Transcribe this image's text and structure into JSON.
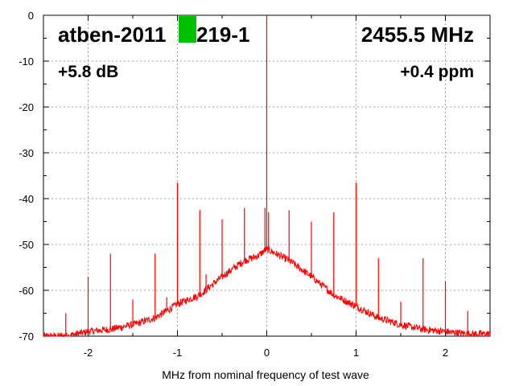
{
  "chart_data": {
    "type": "line",
    "title": "",
    "xlabel": "MHz from nominal frequency of test wave",
    "ylabel": "",
    "xlim": [
      -2.5,
      2.5
    ],
    "ylim": [
      -70,
      0
    ],
    "grid": true,
    "x_ticks": [
      -2,
      -1,
      0,
      1,
      2
    ],
    "x_tick_labels": [
      "-2",
      "-1",
      "0",
      "1",
      "2"
    ],
    "y_ticks": [
      0,
      -10,
      -20,
      -30,
      -40,
      -50,
      -60,
      -70
    ],
    "y_tick_labels": [
      "0",
      "-10",
      "-20",
      "-30",
      "-40",
      "-50",
      "-60",
      "-70"
    ],
    "series_color": "#ff0000",
    "noise_floor": {
      "x": [
        -2.5,
        -2.25,
        -2.0,
        -1.75,
        -1.5,
        -1.25,
        -1.0,
        -0.75,
        -0.5,
        -0.25,
        -0.1,
        0.0,
        0.1,
        0.25,
        0.5,
        0.75,
        1.0,
        1.25,
        1.5,
        1.75,
        2.0,
        2.25,
        2.5
      ],
      "y": [
        -70,
        -70,
        -69,
        -68.5,
        -67.5,
        -66,
        -63,
        -61,
        -57,
        -53.5,
        -52.5,
        -51,
        -52,
        -53.5,
        -57,
        -61,
        -63.5,
        -66,
        -67.5,
        -68.5,
        -69,
        -69.5,
        -69.5
      ]
    },
    "spurs": [
      {
        "x": 0.0,
        "y": 0
      },
      {
        "x": -0.02,
        "y": -42
      },
      {
        "x": 0.02,
        "y": -43
      },
      {
        "x": -1.0,
        "y": -36.5
      },
      {
        "x": 1.0,
        "y": -36.5
      },
      {
        "x": -0.25,
        "y": -42
      },
      {
        "x": 0.25,
        "y": -42.5
      },
      {
        "x": -0.75,
        "y": -42.5
      },
      {
        "x": 0.75,
        "y": -43
      },
      {
        "x": -0.5,
        "y": -44.5
      },
      {
        "x": 0.5,
        "y": -45
      },
      {
        "x": -1.75,
        "y": -52
      },
      {
        "x": 1.75,
        "y": -53
      },
      {
        "x": -1.25,
        "y": -52
      },
      {
        "x": 1.25,
        "y": -53
      },
      {
        "x": -2.0,
        "y": -57
      },
      {
        "x": 2.0,
        "y": -58
      },
      {
        "x": -2.25,
        "y": -65
      },
      {
        "x": 2.25,
        "y": -64.5
      },
      {
        "x": -1.5,
        "y": -62
      },
      {
        "x": 1.5,
        "y": -62.5
      },
      {
        "x": -0.68,
        "y": -56.5
      },
      {
        "x": -1.12,
        "y": -61.5
      }
    ],
    "annotations": {
      "device": "atben-2011",
      "device_suffix": "219-1",
      "frequency": "2455.5 MHz",
      "level": "+5.8 dB",
      "offset": "+0.4 ppm",
      "marker_color": "#00c000"
    }
  }
}
